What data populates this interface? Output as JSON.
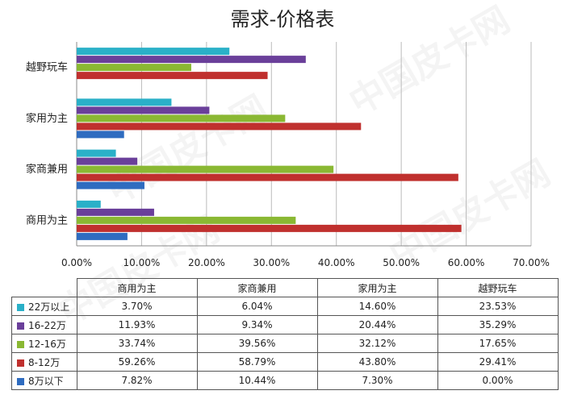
{
  "chart_data": {
    "type": "bar",
    "orientation": "horizontal",
    "title": "需求-价格表",
    "categories": [
      "商用为主",
      "家商兼用",
      "家用为主",
      "越野玩车"
    ],
    "x_ticks": [
      "0.00%",
      "10.00%",
      "20.00%",
      "30.00%",
      "40.00%",
      "50.00%",
      "60.00%",
      "70.00%"
    ],
    "xlim": [
      0,
      70
    ],
    "grid": true,
    "series": [
      {
        "name": "22万以上",
        "color": "#2ab0c8",
        "values": [
          3.7,
          6.04,
          14.6,
          23.53
        ],
        "labels": [
          "3.70%",
          "6.04%",
          "14.60%",
          "23.53%"
        ]
      },
      {
        "name": "16-22万",
        "color": "#6a3f9a",
        "values": [
          11.93,
          9.34,
          20.44,
          35.29
        ],
        "labels": [
          "11.93%",
          "9.34%",
          "20.44%",
          "35.29%"
        ]
      },
      {
        "name": "12-16万",
        "color": "#8ab833",
        "values": [
          33.74,
          39.56,
          32.12,
          17.65
        ],
        "labels": [
          "33.74%",
          "39.56%",
          "32.12%",
          "17.65%"
        ]
      },
      {
        "name": "8-12万",
        "color": "#c0302e",
        "values": [
          59.26,
          58.79,
          43.8,
          29.41
        ],
        "labels": [
          "59.26%",
          "58.79%",
          "43.80%",
          "29.41%"
        ]
      },
      {
        "name": "8万以下",
        "color": "#2f6cc0",
        "values": [
          7.82,
          10.44,
          7.3,
          0.0
        ],
        "labels": [
          "7.82%",
          "10.44%",
          "7.30%",
          "0.00%"
        ]
      }
    ]
  }
}
